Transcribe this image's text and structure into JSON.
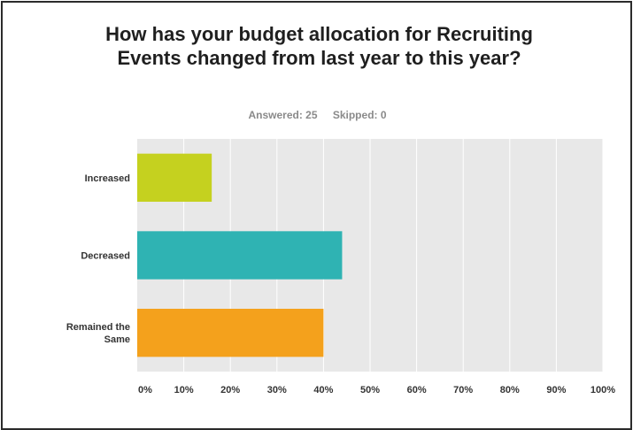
{
  "header": {
    "title": "How has your budget allocation for Recruiting Events changed from last year to this year?",
    "answered": "Answered: 25",
    "skipped": "Skipped: 0"
  },
  "chart_data": {
    "type": "bar",
    "orientation": "horizontal",
    "title": "How has your budget allocation for Recruiting Events changed from last year to this year?",
    "categories": [
      "Increased",
      "Decreased",
      "Remained the Same"
    ],
    "category_lines": [
      [
        "Increased"
      ],
      [
        "Decreased"
      ],
      [
        "Remained the",
        "Same"
      ]
    ],
    "values": [
      16,
      44,
      40
    ],
    "colors": [
      "#c5d11f",
      "#2fb3b3",
      "#f4a11c"
    ],
    "xlim": [
      0,
      100
    ],
    "xticks": [
      0,
      10,
      20,
      30,
      40,
      50,
      60,
      70,
      80,
      90,
      100
    ],
    "xtick_labels": [
      "0%",
      "10%",
      "20%",
      "30%",
      "40%",
      "50%",
      "60%",
      "70%",
      "80%",
      "90%",
      "100%"
    ],
    "xlabel": "",
    "ylabel": "",
    "grid": true,
    "background": "#e8e8e8"
  }
}
